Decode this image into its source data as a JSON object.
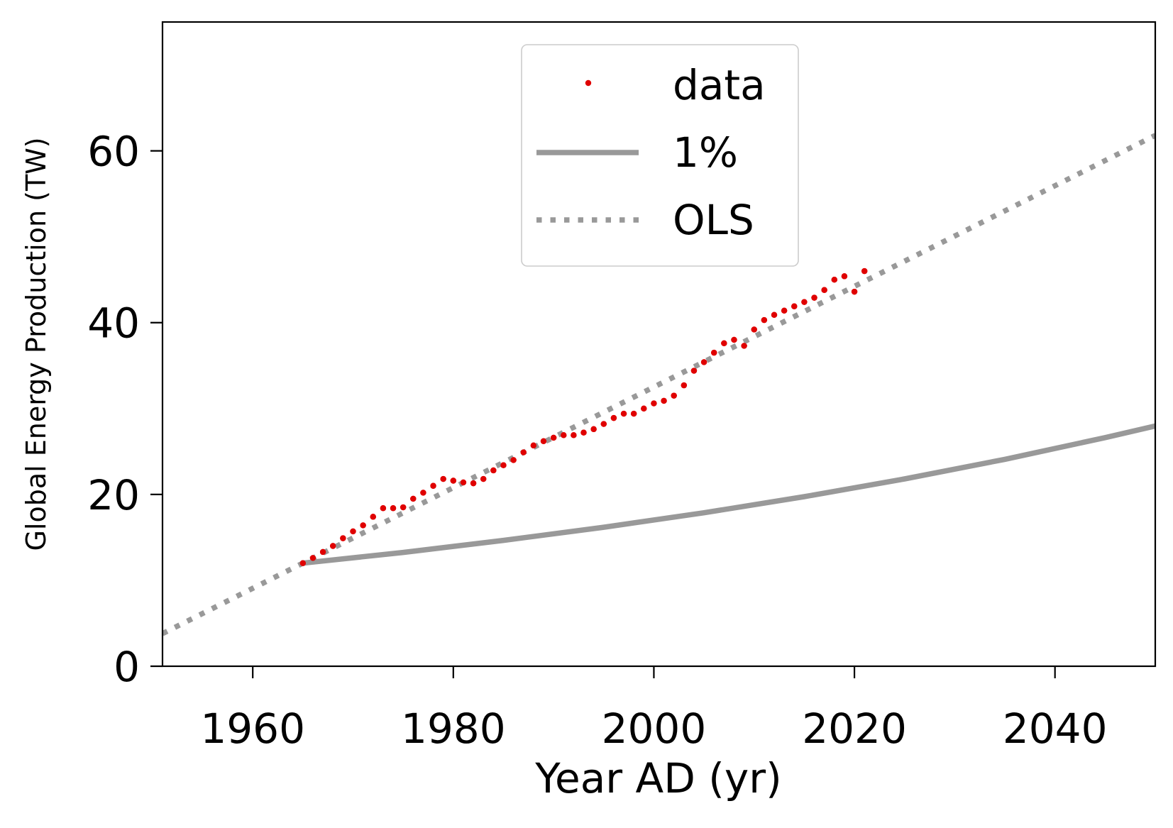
{
  "chart_data": {
    "type": "line",
    "xlabel": "Year AD (yr)",
    "ylabel": "Global Energy Production (TW)",
    "xlim": [
      1951,
      2050
    ],
    "ylim": [
      0,
      75
    ],
    "xticks": [
      1960,
      1980,
      2000,
      2020,
      2040
    ],
    "yticks": [
      0,
      20,
      40,
      60
    ],
    "legend_position": "upper-center",
    "series": [
      {
        "name": "data",
        "style": "points",
        "color": "#e00000",
        "x": [
          1965,
          1966,
          1967,
          1968,
          1969,
          1970,
          1971,
          1972,
          1973,
          1974,
          1975,
          1976,
          1977,
          1978,
          1979,
          1980,
          1981,
          1982,
          1983,
          1984,
          1985,
          1986,
          1987,
          1988,
          1989,
          1990,
          1991,
          1992,
          1993,
          1994,
          1995,
          1996,
          1997,
          1998,
          1999,
          2000,
          2001,
          2002,
          2003,
          2004,
          2005,
          2006,
          2007,
          2008,
          2009,
          2010,
          2011,
          2012,
          2013,
          2014,
          2015,
          2016,
          2017,
          2018,
          2019,
          2020,
          2021
        ],
        "y": [
          12.0,
          12.6,
          13.3,
          14.0,
          14.9,
          15.7,
          16.4,
          17.4,
          18.4,
          18.4,
          18.5,
          19.5,
          20.2,
          21.0,
          21.8,
          21.6,
          21.4,
          21.3,
          21.8,
          22.8,
          23.4,
          24.0,
          24.9,
          25.7,
          26.2,
          26.6,
          26.9,
          26.9,
          27.2,
          27.6,
          28.2,
          28.9,
          29.4,
          29.4,
          30.0,
          30.6,
          30.9,
          31.5,
          32.7,
          34.4,
          35.4,
          36.5,
          37.6,
          38.0,
          37.3,
          39.2,
          40.3,
          40.9,
          41.4,
          41.9,
          42.4,
          42.9,
          43.8,
          45.0,
          45.4,
          43.6,
          46.0
        ]
      },
      {
        "name": "1%",
        "style": "solid",
        "color": "#999999",
        "x": [
          1965,
          1975,
          1985,
          1995,
          2005,
          2015,
          2025,
          2035,
          2045,
          2050
        ],
        "y": [
          12.0,
          13.25,
          14.65,
          16.18,
          17.87,
          19.74,
          21.81,
          24.09,
          26.61,
          27.97
        ]
      },
      {
        "name": "OLS",
        "style": "dotted",
        "color": "#999999",
        "x": [
          1951,
          2050
        ],
        "y": [
          3.8,
          61.8
        ]
      }
    ]
  }
}
